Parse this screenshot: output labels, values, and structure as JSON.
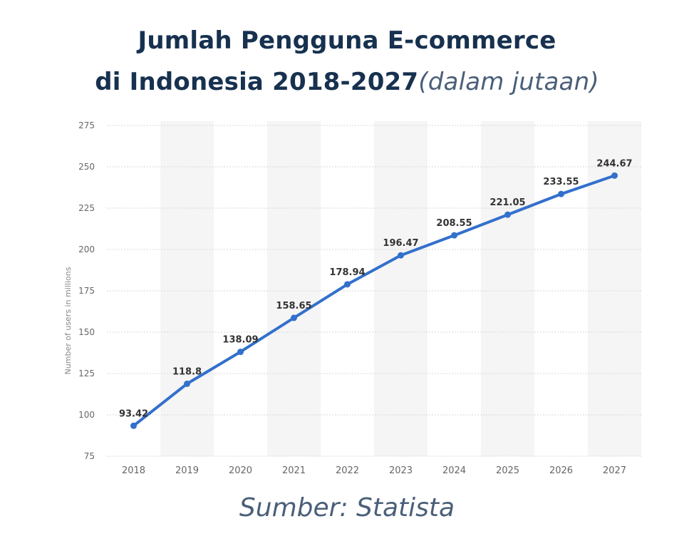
{
  "header": {
    "title_line1": "Jumlah Pengguna E-commerce",
    "title_line2": "di Indonesia 2018-2027",
    "subtitle": "(dalam jutaan)"
  },
  "footer": {
    "source": "Sumber: Statista"
  },
  "chart_data": {
    "type": "line",
    "title": "Jumlah Pengguna E-commerce di Indonesia 2018-2027",
    "subtitle": "(dalam jutaan)",
    "xlabel": "",
    "ylabel": "Number of users in millions",
    "categories": [
      "2018",
      "2019",
      "2020",
      "2021",
      "2022",
      "2023",
      "2024",
      "2025",
      "2026",
      "2027"
    ],
    "series": [
      {
        "values": [
          93.42,
          118.8,
          138.09,
          158.65,
          178.94,
          196.47,
          208.55,
          221.05,
          233.55,
          244.67
        ]
      }
    ],
    "data_labels": [
      "93.42",
      "118.8",
      "138.09",
      "158.65",
      "178.94",
      "196.47",
      "208.55",
      "221.05",
      "233.55",
      "244.67"
    ],
    "yticks": [
      75,
      100,
      125,
      150,
      175,
      200,
      225,
      250,
      275
    ],
    "ylim": [
      75,
      275
    ],
    "grid": "horizontal dashed",
    "alternating_column_shading": true,
    "line_color": "#3370cc",
    "label_color": "#333333",
    "axis_text_color": "#666666",
    "band_color": "#f5f5f5",
    "grid_color": "#d6d6d6"
  }
}
